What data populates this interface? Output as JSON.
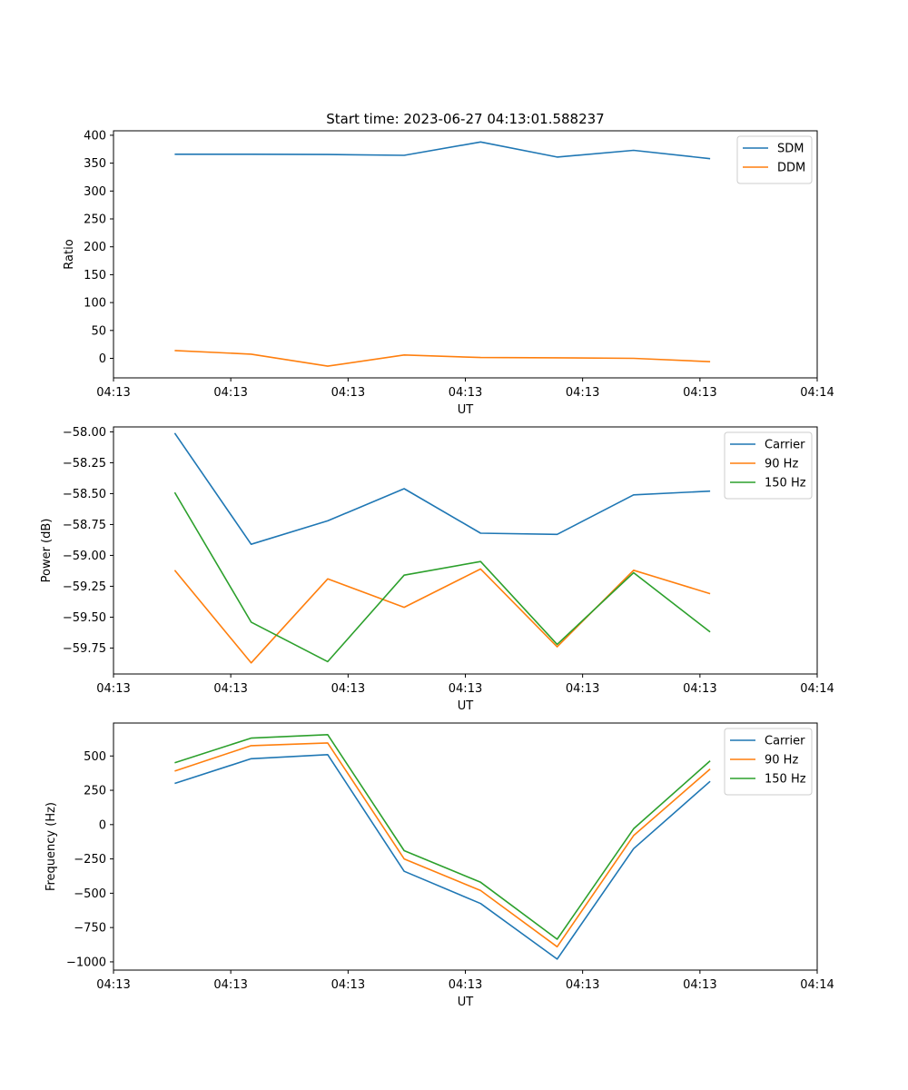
{
  "chart_data": [
    {
      "type": "line",
      "title": "Start time: 2023-06-27 04:13:01.588237",
      "xlabel": "UT",
      "ylabel": "Ratio",
      "x": [
        1,
        2,
        3,
        4,
        5,
        6,
        7,
        8
      ],
      "xlim": [
        0.2,
        9.4
      ],
      "x_ticks": [
        {
          "value": 0.2,
          "label": "04:13"
        },
        {
          "value": 1.733,
          "label": "04:13"
        },
        {
          "value": 3.267,
          "label": "04:13"
        },
        {
          "value": 4.8,
          "label": "04:13"
        },
        {
          "value": 6.333,
          "label": "04:13"
        },
        {
          "value": 7.867,
          "label": "04:13"
        },
        {
          "value": 9.4,
          "label": "04:14"
        }
      ],
      "ylim": [
        -35,
        408
      ],
      "y_ticks": [
        {
          "value": 0,
          "label": "0"
        },
        {
          "value": 50,
          "label": "50"
        },
        {
          "value": 100,
          "label": "100"
        },
        {
          "value": 150,
          "label": "150"
        },
        {
          "value": 200,
          "label": "200"
        },
        {
          "value": 250,
          "label": "250"
        },
        {
          "value": 300,
          "label": "300"
        },
        {
          "value": 350,
          "label": "350"
        },
        {
          "value": 400,
          "label": "400"
        }
      ],
      "series": [
        {
          "name": "SDM",
          "color": "#1f77b4",
          "values": [
            366,
            366,
            365.5,
            364,
            388,
            361,
            373,
            358
          ]
        },
        {
          "name": "DDM",
          "color": "#ff7f0e",
          "values": [
            14,
            7.5,
            -14,
            6,
            1.5,
            1,
            0,
            -6
          ]
        }
      ],
      "legend": "top-right",
      "grid": false
    },
    {
      "type": "line",
      "title": "",
      "xlabel": "UT",
      "ylabel": "Power (dB)",
      "x": [
        1,
        2,
        3,
        4,
        5,
        6,
        7,
        8
      ],
      "xlim": [
        0.2,
        9.4
      ],
      "x_ticks": [
        {
          "value": 0.2,
          "label": "04:13"
        },
        {
          "value": 1.733,
          "label": "04:13"
        },
        {
          "value": 3.267,
          "label": "04:13"
        },
        {
          "value": 4.8,
          "label": "04:13"
        },
        {
          "value": 6.333,
          "label": "04:13"
        },
        {
          "value": 7.867,
          "label": "04:13"
        },
        {
          "value": 9.4,
          "label": "04:14"
        }
      ],
      "ylim": [
        -59.96,
        -57.96
      ],
      "y_ticks": [
        {
          "value": -59.75,
          "label": "−59.75"
        },
        {
          "value": -59.5,
          "label": "−59.50"
        },
        {
          "value": -59.25,
          "label": "−59.25"
        },
        {
          "value": -59.0,
          "label": "−59.00"
        },
        {
          "value": -58.75,
          "label": "−58.75"
        },
        {
          "value": -58.5,
          "label": "−58.50"
        },
        {
          "value": -58.25,
          "label": "−58.25"
        },
        {
          "value": -58.0,
          "label": "−58.00"
        }
      ],
      "series": [
        {
          "name": "Carrier",
          "color": "#1f77b4",
          "values": [
            -58.01,
            -58.91,
            -58.72,
            -58.46,
            -58.82,
            -58.83,
            -58.51,
            -58.48
          ]
        },
        {
          "name": "90 Hz",
          "color": "#ff7f0e",
          "values": [
            -59.12,
            -59.87,
            -59.19,
            -59.42,
            -59.11,
            -59.74,
            -59.12,
            -59.31
          ]
        },
        {
          "name": "150 Hz",
          "color": "#2ca02c",
          "values": [
            -58.49,
            -59.54,
            -59.86,
            -59.16,
            -59.05,
            -59.72,
            -59.14,
            -59.62
          ]
        }
      ],
      "legend": "top-right",
      "grid": false
    },
    {
      "type": "line",
      "title": "",
      "xlabel": "UT",
      "ylabel": "Frequency (Hz)",
      "x": [
        1,
        2,
        3,
        4,
        5,
        6,
        7,
        8
      ],
      "xlim": [
        0.2,
        9.4
      ],
      "x_ticks": [
        {
          "value": 0.2,
          "label": "04:13"
        },
        {
          "value": 1.733,
          "label": "04:13"
        },
        {
          "value": 3.267,
          "label": "04:13"
        },
        {
          "value": 4.8,
          "label": "04:13"
        },
        {
          "value": 6.333,
          "label": "04:13"
        },
        {
          "value": 7.867,
          "label": "04:13"
        },
        {
          "value": 9.4,
          "label": "04:14"
        }
      ],
      "ylim": [
        -1060,
        740
      ],
      "y_ticks": [
        {
          "value": -1000,
          "label": "−1000"
        },
        {
          "value": -750,
          "label": "−750"
        },
        {
          "value": -500,
          "label": "−500"
        },
        {
          "value": -250,
          "label": "−250"
        },
        {
          "value": 0,
          "label": "0"
        },
        {
          "value": 250,
          "label": "250"
        },
        {
          "value": 500,
          "label": "500"
        }
      ],
      "series": [
        {
          "name": "Carrier",
          "color": "#1f77b4",
          "values": [
            300,
            480,
            510,
            -340,
            -575,
            -980,
            -175,
            315
          ]
        },
        {
          "name": "90 Hz",
          "color": "#ff7f0e",
          "values": [
            390,
            575,
            595,
            -250,
            -480,
            -890,
            -80,
            405
          ]
        },
        {
          "name": "150 Hz",
          "color": "#2ca02c",
          "values": [
            450,
            630,
            655,
            -190,
            -420,
            -835,
            -30,
            465
          ]
        }
      ],
      "legend": "top-right",
      "grid": false
    }
  ]
}
